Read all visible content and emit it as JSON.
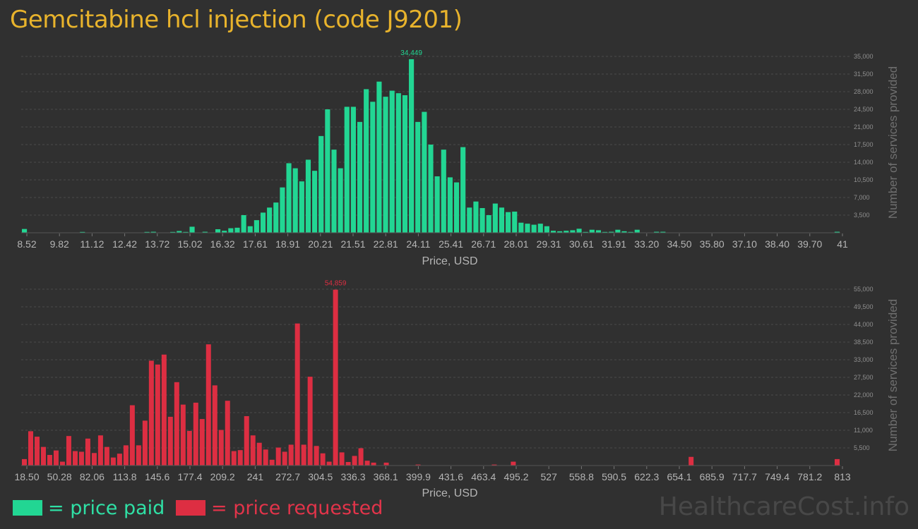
{
  "page": {
    "title": "Gemcitabine hcl injection (code J9201)",
    "watermark": "HealthcareCost.info"
  },
  "legend": {
    "paid_label": "= price paid",
    "requested_label": "= price requested"
  },
  "colors": {
    "background": "#303030",
    "title": "#e8b32c",
    "paid": "#22d693",
    "requested": "#dd2e42",
    "axis_text": "#b5b5b5",
    "grid": "#4a4a4a"
  },
  "chart_data": [
    {
      "type": "bar",
      "series_name": "price paid",
      "xlabel": "Price, USD",
      "ylabel": "Number of services provided",
      "ylim": [
        0,
        35000
      ],
      "yticks": [
        "3,500",
        "7,000",
        "10,500",
        "14,000",
        "17,500",
        "21,000",
        "24,500",
        "28,000",
        "31,500",
        "35,000"
      ],
      "xtick_labels": [
        "8.52",
        "9.82",
        "11.12",
        "12.42",
        "13.72",
        "15.02",
        "16.32",
        "17.61",
        "18.91",
        "20.21",
        "21.51",
        "22.81",
        "24.11",
        "25.41",
        "26.71",
        "28.01",
        "29.31",
        "30.61",
        "31.91",
        "33.20",
        "34.50",
        "35.80",
        "37.10",
        "38.40",
        "39.70",
        "41"
      ],
      "max_label": "34,449",
      "values": [
        750,
        0,
        0,
        0,
        0,
        0,
        0,
        0,
        0,
        80,
        0,
        0,
        0,
        0,
        0,
        0,
        0,
        0,
        0,
        120,
        200,
        0,
        0,
        80,
        350,
        150,
        1200,
        0,
        200,
        0,
        700,
        400,
        900,
        1000,
        3500,
        1300,
        2500,
        4000,
        5000,
        6000,
        9000,
        13800,
        12800,
        10200,
        14500,
        12300,
        19200,
        24500,
        16500,
        12800,
        25000,
        25000,
        22000,
        28500,
        26000,
        30000,
        27000,
        28200,
        27700,
        27300,
        34449,
        22000,
        24000,
        17500,
        11200,
        16500,
        11000,
        10000,
        17000,
        5000,
        6200,
        4900,
        3500,
        5800,
        5000,
        4100,
        4200,
        2000,
        1800,
        1600,
        1800,
        1300,
        400,
        300,
        400,
        500,
        800,
        100,
        600,
        500,
        100,
        200,
        600,
        300,
        100,
        600,
        0,
        0,
        200,
        200,
        0,
        0,
        0,
        0,
        0,
        0,
        0,
        0,
        0,
        0,
        0,
        0,
        0,
        0,
        0,
        0,
        0,
        0,
        0,
        0,
        0,
        0,
        0,
        0,
        0,
        0,
        200
      ]
    },
    {
      "type": "bar",
      "series_name": "price requested",
      "xlabel": "Price, USD",
      "ylabel": "Number of services provided",
      "ylim": [
        0,
        55000
      ],
      "yticks": [
        "5,500",
        "11,000",
        "16,500",
        "22,000",
        "27,500",
        "33,000",
        "38,500",
        "44,000",
        "49,500",
        "55,000"
      ],
      "xtick_labels": [
        "18.50",
        "50.28",
        "82.06",
        "113.8",
        "145.6",
        "177.4",
        "209.2",
        "241",
        "272.7",
        "304.5",
        "336.3",
        "368.1",
        "399.9",
        "431.6",
        "463.4",
        "495.2",
        "527",
        "558.8",
        "590.5",
        "622.3",
        "654.1",
        "685.9",
        "717.7",
        "749.4",
        "781.2",
        "813"
      ],
      "max_label": "54,859",
      "values": [
        2000,
        10700,
        9000,
        5800,
        3300,
        4700,
        1200,
        9200,
        4500,
        4300,
        8400,
        3900,
        9400,
        5800,
        2500,
        3700,
        6300,
        18800,
        6300,
        14000,
        32700,
        31500,
        34600,
        15200,
        26000,
        19000,
        10800,
        19600,
        14500,
        37800,
        25000,
        11100,
        20200,
        4500,
        4800,
        15400,
        9400,
        7100,
        5000,
        1800,
        5600,
        4300,
        6500,
        44300,
        6500,
        27700,
        6100,
        3800,
        1200,
        54859,
        4100,
        1100,
        3000,
        5400,
        1500,
        900,
        0,
        900,
        0,
        0,
        0,
        0,
        300,
        0,
        0,
        0,
        0,
        0,
        0,
        0,
        0,
        0,
        0,
        0,
        300,
        0,
        0,
        1200,
        0,
        0,
        0,
        0,
        0,
        0,
        0,
        0,
        0,
        0,
        0,
        0,
        0,
        0,
        0,
        0,
        0,
        0,
        0,
        0,
        0,
        0,
        0,
        0,
        0,
        0,
        0,
        2700,
        0,
        0,
        0,
        0,
        0,
        0,
        0,
        0,
        0,
        0,
        0,
        0,
        0,
        0,
        0,
        0,
        0,
        0,
        0,
        0,
        0,
        0,
        2000
      ]
    }
  ]
}
